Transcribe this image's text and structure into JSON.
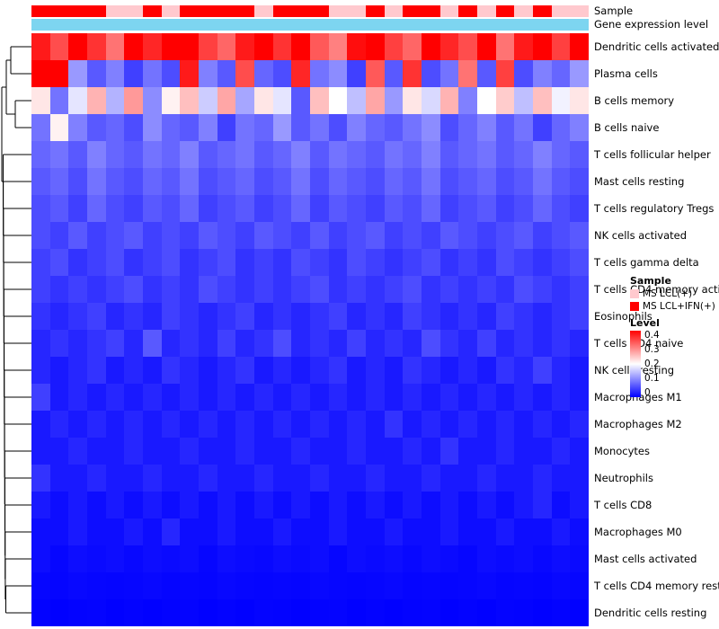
{
  "annotations": {
    "sample_label": "Sample",
    "gene_expression_label": "Gene expression level",
    "gene_expression_color": "#7DD5F0"
  },
  "legend": {
    "sample": {
      "title": "Sample",
      "items": [
        {
          "label": "MS LCL(+)",
          "color": "#FFC9CE"
        },
        {
          "label": "MS LCL+IFN(+)",
          "color": "#FF0000"
        }
      ]
    },
    "level": {
      "title": "Level",
      "ticks": [
        "0.4",
        "0.3",
        "0.2",
        "0.1",
        "0"
      ]
    }
  },
  "chart_data": {
    "type": "heatmap",
    "title": "",
    "rows": [
      "Dendritic cells activated",
      "Plasma cells",
      "B cells memory",
      "B cells naive",
      "T cells follicular helper",
      "Mast cells resting",
      "T cells regulatory  Tregs",
      "NK cells activated",
      "T cells gamma delta",
      "T cells CD4 memory activated",
      "Eosinophils",
      "T cells CD4 naive",
      "NK cells resting",
      "Macrophages M1",
      "Macrophages M2",
      "Monocytes",
      "Neutrophils",
      "T cells CD8",
      "Macrophages M0",
      "Mast cells activated",
      "T cells CD4 memory resting",
      "Dendritic cells resting"
    ],
    "n_columns": 30,
    "sample_annotation": [
      "MS LCL+IFN(+)",
      "MS LCL+IFN(+)",
      "MS LCL+IFN(+)",
      "MS LCL+IFN(+)",
      "MS LCL(+)",
      "MS LCL(+)",
      "MS LCL+IFN(+)",
      "MS LCL(+)",
      "MS LCL+IFN(+)",
      "MS LCL+IFN(+)",
      "MS LCL+IFN(+)",
      "MS LCL+IFN(+)",
      "MS LCL(+)",
      "MS LCL+IFN(+)",
      "MS LCL+IFN(+)",
      "MS LCL+IFN(+)",
      "MS LCL(+)",
      "MS LCL(+)",
      "MS LCL+IFN(+)",
      "MS LCL(+)",
      "MS LCL+IFN(+)",
      "MS LCL+IFN(+)",
      "MS LCL(+)",
      "MS LCL+IFN(+)",
      "MS LCL(+)",
      "MS LCL+IFN(+)",
      "MS LCL(+)",
      "MS LCL+IFN(+)",
      "MS LCL(+)",
      "MS LCL(+)"
    ],
    "color_scale": {
      "min": 0,
      "mid": 0.2,
      "max": 0.4,
      "min_color": "#0000FF",
      "mid_color": "#FFFFFF",
      "max_color": "#FF0000"
    },
    "values": [
      [
        0.38,
        0.34,
        0.42,
        0.36,
        0.31,
        0.44,
        0.37,
        0.4,
        0.45,
        0.35,
        0.32,
        0.38,
        0.43,
        0.36,
        0.41,
        0.33,
        0.3,
        0.39,
        0.44,
        0.35,
        0.32,
        0.41,
        0.37,
        0.34,
        0.45,
        0.31,
        0.38,
        0.42,
        0.35,
        0.4
      ],
      [
        0.45,
        0.41,
        0.12,
        0.07,
        0.1,
        0.05,
        0.09,
        0.06,
        0.38,
        0.1,
        0.07,
        0.34,
        0.08,
        0.06,
        0.37,
        0.09,
        0.11,
        0.05,
        0.33,
        0.07,
        0.36,
        0.06,
        0.09,
        0.31,
        0.07,
        0.35,
        0.06,
        0.1,
        0.08,
        0.12
      ],
      [
        0.22,
        0.09,
        0.18,
        0.26,
        0.14,
        0.28,
        0.11,
        0.21,
        0.25,
        0.16,
        0.27,
        0.13,
        0.22,
        0.18,
        0.07,
        0.25,
        0.2,
        0.15,
        0.27,
        0.12,
        0.22,
        0.17,
        0.26,
        0.1,
        0.2,
        0.24,
        0.15,
        0.25,
        0.19,
        0.22
      ],
      [
        0.09,
        0.21,
        0.1,
        0.07,
        0.08,
        0.06,
        0.11,
        0.08,
        0.07,
        0.1,
        0.05,
        0.09,
        0.08,
        0.12,
        0.07,
        0.09,
        0.06,
        0.1,
        0.08,
        0.07,
        0.09,
        0.11,
        0.06,
        0.08,
        0.1,
        0.07,
        0.09,
        0.05,
        0.08,
        0.1
      ],
      [
        0.08,
        0.09,
        0.07,
        0.1,
        0.08,
        0.07,
        0.09,
        0.08,
        0.1,
        0.07,
        0.08,
        0.09,
        0.07,
        0.08,
        0.1,
        0.07,
        0.09,
        0.08,
        0.07,
        0.09,
        0.08,
        0.1,
        0.07,
        0.08,
        0.09,
        0.07,
        0.08,
        0.1,
        0.08,
        0.07
      ],
      [
        0.07,
        0.08,
        0.06,
        0.09,
        0.07,
        0.06,
        0.08,
        0.07,
        0.09,
        0.06,
        0.07,
        0.08,
        0.06,
        0.07,
        0.09,
        0.06,
        0.08,
        0.07,
        0.06,
        0.08,
        0.07,
        0.09,
        0.06,
        0.07,
        0.08,
        0.06,
        0.07,
        0.09,
        0.07,
        0.06
      ],
      [
        0.06,
        0.07,
        0.05,
        0.08,
        0.06,
        0.05,
        0.07,
        0.06,
        0.08,
        0.05,
        0.06,
        0.07,
        0.05,
        0.06,
        0.08,
        0.05,
        0.07,
        0.06,
        0.05,
        0.07,
        0.06,
        0.08,
        0.05,
        0.06,
        0.07,
        0.05,
        0.06,
        0.08,
        0.06,
        0.05
      ],
      [
        0.06,
        0.05,
        0.07,
        0.05,
        0.06,
        0.07,
        0.05,
        0.06,
        0.05,
        0.07,
        0.06,
        0.05,
        0.07,
        0.06,
        0.05,
        0.07,
        0.05,
        0.06,
        0.07,
        0.05,
        0.06,
        0.05,
        0.07,
        0.06,
        0.05,
        0.06,
        0.07,
        0.05,
        0.06,
        0.07
      ],
      [
        0.05,
        0.06,
        0.04,
        0.05,
        0.06,
        0.04,
        0.05,
        0.06,
        0.04,
        0.05,
        0.06,
        0.04,
        0.05,
        0.04,
        0.06,
        0.05,
        0.04,
        0.06,
        0.05,
        0.04,
        0.05,
        0.06,
        0.04,
        0.05,
        0.04,
        0.06,
        0.05,
        0.04,
        0.05,
        0.06
      ],
      [
        0.05,
        0.04,
        0.05,
        0.04,
        0.05,
        0.06,
        0.04,
        0.05,
        0.04,
        0.06,
        0.05,
        0.04,
        0.05,
        0.04,
        0.05,
        0.06,
        0.04,
        0.05,
        0.04,
        0.05,
        0.06,
        0.04,
        0.05,
        0.04,
        0.05,
        0.04,
        0.06,
        0.05,
        0.04,
        0.05
      ],
      [
        0.04,
        0.03,
        0.04,
        0.05,
        0.03,
        0.04,
        0.03,
        0.05,
        0.04,
        0.03,
        0.04,
        0.05,
        0.03,
        0.04,
        0.03,
        0.04,
        0.05,
        0.03,
        0.04,
        0.03,
        0.05,
        0.04,
        0.03,
        0.04,
        0.03,
        0.05,
        0.04,
        0.03,
        0.04,
        0.05
      ],
      [
        0.03,
        0.04,
        0.03,
        0.04,
        0.05,
        0.03,
        0.07,
        0.03,
        0.04,
        0.03,
        0.05,
        0.03,
        0.04,
        0.06,
        0.03,
        0.04,
        0.03,
        0.05,
        0.03,
        0.04,
        0.03,
        0.06,
        0.04,
        0.03,
        0.05,
        0.03,
        0.04,
        0.03,
        0.04,
        0.03
      ],
      [
        0.03,
        0.02,
        0.03,
        0.04,
        0.02,
        0.03,
        0.02,
        0.04,
        0.03,
        0.02,
        0.03,
        0.04,
        0.02,
        0.03,
        0.02,
        0.03,
        0.04,
        0.02,
        0.03,
        0.02,
        0.04,
        0.03,
        0.02,
        0.03,
        0.02,
        0.04,
        0.03,
        0.05,
        0.03,
        0.02
      ],
      [
        0.05,
        0.02,
        0.03,
        0.02,
        0.03,
        0.02,
        0.03,
        0.02,
        0.03,
        0.02,
        0.03,
        0.02,
        0.03,
        0.02,
        0.03,
        0.02,
        0.03,
        0.02,
        0.03,
        0.02,
        0.03,
        0.02,
        0.03,
        0.02,
        0.03,
        0.02,
        0.03,
        0.02,
        0.03,
        0.02
      ],
      [
        0.02,
        0.03,
        0.02,
        0.03,
        0.02,
        0.03,
        0.02,
        0.03,
        0.02,
        0.03,
        0.02,
        0.03,
        0.02,
        0.03,
        0.02,
        0.03,
        0.02,
        0.03,
        0.02,
        0.04,
        0.02,
        0.03,
        0.02,
        0.03,
        0.02,
        0.03,
        0.02,
        0.03,
        0.02,
        0.03
      ],
      [
        0.02,
        0.02,
        0.03,
        0.02,
        0.02,
        0.03,
        0.02,
        0.02,
        0.03,
        0.02,
        0.02,
        0.03,
        0.02,
        0.02,
        0.03,
        0.02,
        0.02,
        0.03,
        0.02,
        0.02,
        0.03,
        0.02,
        0.04,
        0.02,
        0.02,
        0.03,
        0.02,
        0.02,
        0.03,
        0.02
      ],
      [
        0.04,
        0.02,
        0.02,
        0.03,
        0.02,
        0.02,
        0.03,
        0.02,
        0.02,
        0.03,
        0.02,
        0.02,
        0.03,
        0.02,
        0.02,
        0.03,
        0.02,
        0.02,
        0.03,
        0.02,
        0.02,
        0.03,
        0.02,
        0.02,
        0.03,
        0.02,
        0.02,
        0.03,
        0.02,
        0.02
      ],
      [
        0.02,
        0.01,
        0.02,
        0.01,
        0.02,
        0.01,
        0.02,
        0.01,
        0.02,
        0.01,
        0.02,
        0.01,
        0.02,
        0.01,
        0.02,
        0.01,
        0.02,
        0.01,
        0.02,
        0.01,
        0.02,
        0.01,
        0.02,
        0.01,
        0.02,
        0.01,
        0.02,
        0.03,
        0.01,
        0.02
      ],
      [
        0.01,
        0.01,
        0.02,
        0.01,
        0.01,
        0.02,
        0.01,
        0.03,
        0.01,
        0.01,
        0.02,
        0.01,
        0.01,
        0.02,
        0.01,
        0.01,
        0.02,
        0.01,
        0.01,
        0.02,
        0.01,
        0.01,
        0.02,
        0.01,
        0.01,
        0.02,
        0.01,
        0.01,
        0.02,
        0.01
      ],
      [
        0.01,
        0.005,
        0.01,
        0.008,
        0.01,
        0.006,
        0.01,
        0.008,
        0.01,
        0.005,
        0.01,
        0.008,
        0.006,
        0.01,
        0.008,
        0.01,
        0.005,
        0.01,
        0.008,
        0.01,
        0.006,
        0.01,
        0.008,
        0.005,
        0.01,
        0.008,
        0.01,
        0.006,
        0.01,
        0.008
      ],
      [
        0.005,
        0.004,
        0.006,
        0.005,
        0.004,
        0.005,
        0.006,
        0.004,
        0.005,
        0.004,
        0.006,
        0.005,
        0.004,
        0.005,
        0.004,
        0.006,
        0.005,
        0.004,
        0.005,
        0.006,
        0.004,
        0.005,
        0.004,
        0.005,
        0.006,
        0.004,
        0.005,
        0.004,
        0.006,
        0.005
      ],
      [
        0.002,
        0.001,
        0.002,
        0.003,
        0.001,
        0.002,
        0.001,
        0.002,
        0.003,
        0.001,
        0.002,
        0.001,
        0.003,
        0.002,
        0.001,
        0.002,
        0.003,
        0.001,
        0.002,
        0.001,
        0.002,
        0.003,
        0.001,
        0.002,
        0.001,
        0.003,
        0.002,
        0.001,
        0.002,
        0.001
      ]
    ]
  }
}
